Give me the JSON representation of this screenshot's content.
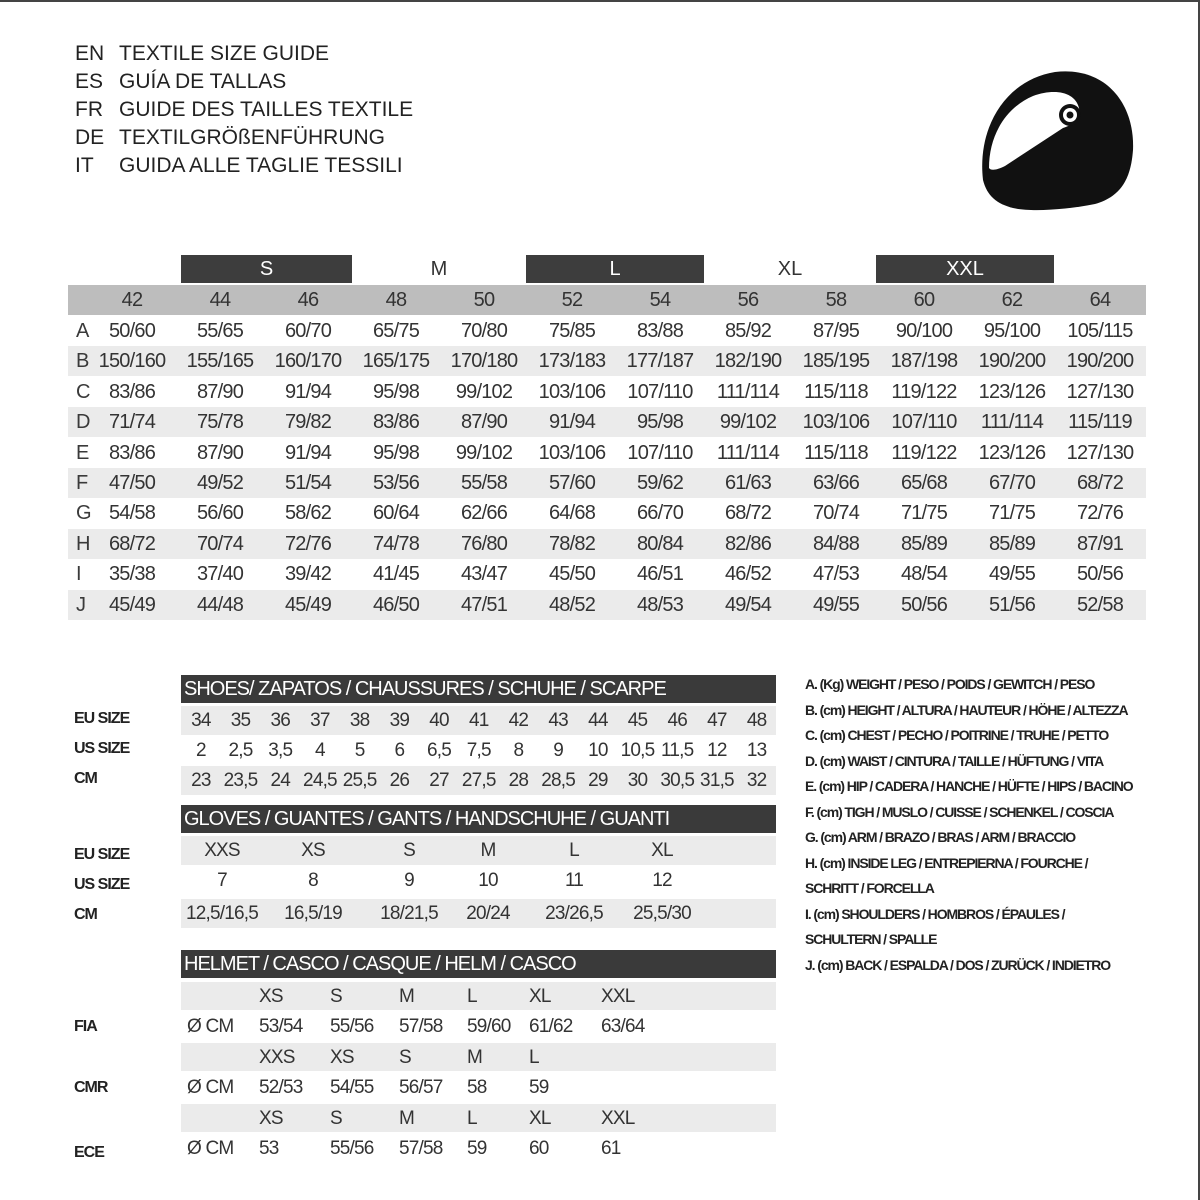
{
  "titles": [
    {
      "code": "EN",
      "text": "TEXTILE SIZE GUIDE"
    },
    {
      "code": "ES",
      "text": "GUÍA DE TALLAS"
    },
    {
      "code": "FR",
      "text": "GUIDE DES TAILLES TEXTILE"
    },
    {
      "code": "DE",
      "text": "TEXTILGRÖßENFÜHRUNG"
    },
    {
      "code": "IT",
      "text": "GUIDA ALLE TAGLIE TESSILI"
    }
  ],
  "helmet_icon": "helmet-icon",
  "textile": {
    "size_groups": [
      "S",
      "M",
      "L",
      "XL",
      "XXL"
    ],
    "sizes": [
      "42",
      "44",
      "46",
      "48",
      "50",
      "52",
      "54",
      "56",
      "58",
      "60",
      "62",
      "64"
    ],
    "rows": [
      {
        "label": "A",
        "values": [
          "50/60",
          "55/65",
          "60/70",
          "65/75",
          "70/80",
          "75/85",
          "83/88",
          "85/92",
          "87/95",
          "90/100",
          "95/100",
          "105/115"
        ]
      },
      {
        "label": "B",
        "values": [
          "150/160",
          "155/165",
          "160/170",
          "165/175",
          "170/180",
          "173/183",
          "177/187",
          "182/190",
          "185/195",
          "187/198",
          "190/200",
          "190/200"
        ]
      },
      {
        "label": "C",
        "values": [
          "83/86",
          "87/90",
          "91/94",
          "95/98",
          "99/102",
          "103/106",
          "107/110",
          "111/114",
          "115/118",
          "119/122",
          "123/126",
          "127/130"
        ]
      },
      {
        "label": "D",
        "values": [
          "71/74",
          "75/78",
          "79/82",
          "83/86",
          "87/90",
          "91/94",
          "95/98",
          "99/102",
          "103/106",
          "107/110",
          "111/114",
          "115/119"
        ]
      },
      {
        "label": "E",
        "values": [
          "83/86",
          "87/90",
          "91/94",
          "95/98",
          "99/102",
          "103/106",
          "107/110",
          "111/114",
          "115/118",
          "119/122",
          "123/126",
          "127/130"
        ]
      },
      {
        "label": "F",
        "values": [
          "47/50",
          "49/52",
          "51/54",
          "53/56",
          "55/58",
          "57/60",
          "59/62",
          "61/63",
          "63/66",
          "65/68",
          "67/70",
          "68/72"
        ]
      },
      {
        "label": "G",
        "values": [
          "54/58",
          "56/60",
          "58/62",
          "60/64",
          "62/66",
          "64/68",
          "66/70",
          "68/72",
          "70/74",
          "71/75",
          "71/75",
          "72/76"
        ]
      },
      {
        "label": "H",
        "values": [
          "68/72",
          "70/74",
          "72/76",
          "74/78",
          "76/80",
          "78/82",
          "80/84",
          "82/86",
          "84/88",
          "85/89",
          "85/89",
          "87/91"
        ]
      },
      {
        "label": "I",
        "values": [
          "35/38",
          "37/40",
          "39/42",
          "41/45",
          "43/47",
          "45/50",
          "46/51",
          "46/52",
          "47/53",
          "48/54",
          "49/55",
          "50/56"
        ]
      },
      {
        "label": "J",
        "values": [
          "45/49",
          "44/48",
          "45/49",
          "46/50",
          "47/51",
          "48/52",
          "48/53",
          "49/54",
          "49/55",
          "50/56",
          "51/56",
          "52/58"
        ]
      }
    ]
  },
  "shoes": {
    "title": "SHOES/ ZAPATOS / CHAUSSURES / SCHUHE / SCARPE",
    "rows": [
      {
        "label": "EU SIZE",
        "values": [
          "34",
          "35",
          "36",
          "37",
          "38",
          "39",
          "40",
          "41",
          "42",
          "43",
          "44",
          "45",
          "46",
          "47",
          "48"
        ]
      },
      {
        "label": "US SIZE",
        "values": [
          "2",
          "2,5",
          "3,5",
          "4",
          "5",
          "6",
          "6,5",
          "7,5",
          "8",
          "9",
          "10",
          "10,5",
          "11,5",
          "12",
          "13"
        ]
      },
      {
        "label": "CM",
        "values": [
          "23",
          "23,5",
          "24",
          "24,5",
          "25,5",
          "26",
          "27",
          "27,5",
          "28",
          "28,5",
          "29",
          "30",
          "30,5",
          "31,5",
          "32"
        ]
      }
    ]
  },
  "gloves": {
    "title": "GLOVES / GUANTES / GANTS / HANDSCHUHE / GUANTI",
    "rows": [
      {
        "label": "EU SIZE",
        "values": [
          "XXS",
          "XS",
          "S",
          "M",
          "L",
          "XL"
        ]
      },
      {
        "label": "US SIZE",
        "values": [
          "7",
          "8",
          "9",
          "10",
          "11",
          "12"
        ]
      },
      {
        "label": "CM",
        "values": [
          "12,5/16,5",
          "16,5/19",
          "18/21,5",
          "20/24",
          "23/26,5",
          "25,5/30"
        ]
      }
    ]
  },
  "helmet": {
    "title": "HELMET / CASCO / CASQUE / HELM / CASCO",
    "standards": [
      {
        "label": "FIA",
        "unit": "Ø CM",
        "sizes": [
          "XS",
          "S",
          "M",
          "L",
          "XL",
          "XXL"
        ],
        "values": [
          "53/54",
          "55/56",
          "57/58",
          "59/60",
          "61/62",
          "63/64"
        ]
      },
      {
        "label": "CMR",
        "unit": "Ø CM",
        "sizes": [
          "XXS",
          "XS",
          "S",
          "M",
          "L"
        ],
        "values": [
          "52/53",
          "54/55",
          "56/57",
          "58",
          "59"
        ]
      },
      {
        "label": "ECE",
        "unit": "Ø CM",
        "sizes": [
          "XS",
          "S",
          "M",
          "L",
          "XL",
          "XXL"
        ],
        "values": [
          "53",
          "55/56",
          "57/58",
          "59",
          "60",
          "61"
        ]
      }
    ]
  },
  "legend": [
    "A. (Kg) WEIGHT / PESO / POIDS / GEWITCH / PESO",
    "B. (cm) HEIGHT / ALTURA / HAUTEUR / HÖHE / ALTEZZA",
    "C. (cm) CHEST / PECHO / POITRINE / TRUHE / PETTO",
    "D. (cm) WAIST / CINTURA / TAILLE / HÜFTUNG / VITA",
    "E. (cm) HIP / CADERA / HANCHE / HÜFTE / HIPS /  BACINO",
    "F.  (cm) TIGH / MUSLO / CUISSE / SCHENKEL / COSCIA",
    "G. (cm) ARM  / BRAZO / BRAS / ARM / BRACCIO",
    "H. (cm) INSIDE LEG / ENTREPIERNA / FOURCHE /",
    "SCHRITT / FORCELLA",
    "I.  (cm) SHOULDERS / HOMBROS / ÉPAULES /",
    "SCHULTERN / SPALLE",
    "J. (cm) BACK / ESPALDA / DOS / ZURÜCK / INDIETRO"
  ]
}
